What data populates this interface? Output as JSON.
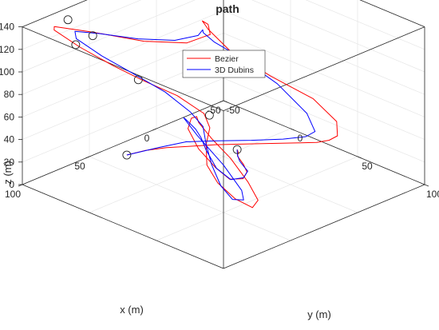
{
  "chart_data": {
    "type": "line",
    "title": "path",
    "xlabel": "x (m)",
    "ylabel": "y (m)",
    "zlabel": "z (m)",
    "xlim": [
      -50,
      100
    ],
    "ylim": [
      -50,
      100
    ],
    "zlim": [
      0,
      140
    ],
    "x_ticks": [
      "100",
      "50",
      "0",
      "-50"
    ],
    "y_ticks": [
      "100",
      "50",
      "0",
      "-50"
    ],
    "z_ticks": [
      "0",
      "20",
      "40",
      "60",
      "80",
      "100",
      "120",
      "140"
    ],
    "grid": true,
    "legend_location": "top-center",
    "series": [
      {
        "name": "Bezier",
        "color": "#ff0000",
        "points": [
          [
            -11.4,
            -1.2,
            0
          ],
          [
            -5.6,
            5.4,
            3.6
          ],
          [
            7.1,
            17.5,
            12.7
          ],
          [
            20.4,
            35.3,
            20.8
          ],
          [
            29,
            46.5,
            23.8
          ],
          [
            39.3,
            53.9,
            26.7
          ],
          [
            55.5,
            60.1,
            37.3
          ],
          [
            63.9,
            58.3,
            50.5
          ],
          [
            64.1,
            45.5,
            61.3
          ],
          [
            54.6,
            28.1,
            65.9
          ],
          [
            42.6,
            18.6,
            64.4
          ],
          [
            35.6,
            15.6,
            61
          ],
          [
            32.9,
            14.3,
            53.8
          ],
          [
            33.5,
            24.9,
            44.7
          ],
          [
            38.6,
            43.9,
            39.4
          ],
          [
            51.7,
            70.1,
            37.7
          ],
          [
            65.7,
            91.5,
            39.3
          ],
          [
            82.4,
            104,
            47.3
          ],
          [
            93.9,
            102.6,
            60.1
          ],
          [
            93.9,
            89.6,
            67.8
          ],
          [
            85.6,
            73.2,
            71.4
          ],
          [
            72.2,
            59.2,
            75.9
          ],
          [
            58,
            47.8,
            78.1
          ],
          [
            47.3,
            32.8,
            78
          ],
          [
            43.9,
            9.4,
            80.6
          ],
          [
            44.6,
            -15.1,
            82.1
          ],
          [
            47.4,
            -34.5,
            86.8
          ],
          [
            55.7,
            -51.4,
            99.3
          ],
          [
            66.6,
            -59.7,
            115.8
          ],
          [
            72.8,
            -53.4,
            125
          ],
          [
            67.4,
            -30.5,
            128.9
          ],
          [
            54.8,
            -4.6,
            127.3
          ],
          [
            36.5,
            9.2,
            123.6
          ],
          [
            17.1,
            7.2,
            120.5
          ],
          [
            5.9,
            -5.6,
            117.6
          ],
          [
            1.6,
            -14.2,
            114.2
          ],
          [
            -1.2,
            -12.6,
            106.2
          ],
          [
            -4.7,
            0.2,
            91.7
          ],
          [
            -12.6,
            22.5,
            76.4
          ],
          [
            -21.5,
            45.4,
            63.2
          ],
          [
            -23.9,
            60.5,
            49.3
          ],
          [
            -20.8,
            64.2,
            40
          ],
          [
            -16.7,
            62.1,
            37.1
          ],
          [
            -12.5,
            57,
            34.7
          ],
          [
            -4.6,
            45.6,
            32.4
          ],
          [
            7.1,
            29.1,
            29.3
          ],
          [
            18.9,
            12.8,
            26.3
          ],
          [
            27.7,
            1.3,
            23.5
          ],
          [
            33.7,
            -8.7,
            20.4
          ],
          [
            38.3,
            -19.8,
            14.7
          ],
          [
            42.6,
            -29.5,
            7.9
          ]
        ]
      },
      {
        "name": "3D Dubins",
        "color": "#0000ff",
        "points": [
          [
            -11.4,
            -1.2,
            0
          ],
          [
            -3.9,
            6.5,
            2.8
          ],
          [
            7.2,
            19.2,
            9.2
          ],
          [
            16.3,
            31.8,
            14.7
          ],
          [
            22.7,
            40.8,
            18.7
          ],
          [
            31.6,
            46.6,
            20.1
          ],
          [
            43.1,
            48.6,
            25.1
          ],
          [
            51.6,
            46.4,
            38.2
          ],
          [
            54.5,
            41.5,
            53.5
          ],
          [
            52.9,
            36.1,
            61.1
          ],
          [
            48.9,
            28.1,
            62.6
          ],
          [
            42.8,
            14.6,
            61.7
          ],
          [
            36.5,
            6.8,
            56
          ],
          [
            32.3,
            12.8,
            41.1
          ],
          [
            36.3,
            36.3,
            28.5
          ],
          [
            51.5,
            65.1,
            27.9
          ],
          [
            68.1,
            83.1,
            36.6
          ],
          [
            82.5,
            89.2,
            47.2
          ],
          [
            87.3,
            85.3,
            59.8
          ],
          [
            82.2,
            73.3,
            70.3
          ],
          [
            71,
            57.9,
            75.9
          ],
          [
            58.4,
            43.1,
            77.2
          ],
          [
            49.6,
            25.1,
            76.5
          ],
          [
            44.6,
            1.1,
            80
          ],
          [
            44.4,
            -23.2,
            84.4
          ],
          [
            49.5,
            -41.3,
            93.5
          ],
          [
            58,
            -51.8,
            107.8
          ],
          [
            61.8,
            -49,
            117.5
          ],
          [
            58.6,
            -34,
            121.4
          ],
          [
            49.4,
            -14.4,
            121.9
          ],
          [
            35.1,
            -1.2,
            120
          ],
          [
            19.5,
            0.6,
            117.5
          ],
          [
            8.8,
            -6.7,
            113.6
          ],
          [
            3.1,
            -12.1,
            105.6
          ],
          [
            -2,
            -9,
            96.4
          ],
          [
            -8.2,
            3.1,
            86.5
          ],
          [
            -15.6,
            24.5,
            69.1
          ],
          [
            -18.6,
            43.6,
            50.8
          ],
          [
            -16,
            52.3,
            40.3
          ],
          [
            -11.1,
            50.3,
            37.2
          ],
          [
            -3.9,
            40.5,
            33.7
          ],
          [
            6.1,
            26.8,
            30.8
          ],
          [
            16.7,
            11.6,
            28.1
          ],
          [
            25.7,
            -2.2,
            24.8
          ],
          [
            33.3,
            -14.7,
            17.4
          ],
          [
            42.6,
            -29.5,
            7.9
          ]
        ]
      }
    ],
    "waypoints": [
      [
        42.6,
        -29.5,
        7.9
      ],
      [
        -11.4,
        -1.2,
        0
      ],
      [
        55.2,
        -60.8,
        118.7
      ],
      [
        62,
        -35.5,
        120.5
      ],
      [
        59.8,
        -50.4,
        104
      ],
      [
        34,
        23.5,
        65.3
      ],
      [
        44.7,
        -18.8,
        81.1
      ]
    ]
  }
}
